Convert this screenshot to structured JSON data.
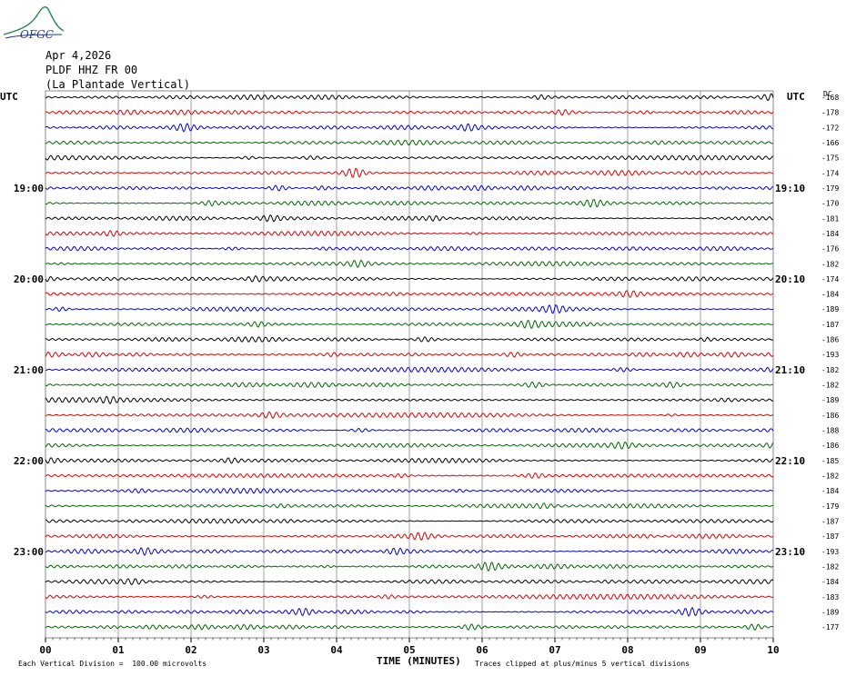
{
  "header": {
    "logo_text": "OFGC",
    "date": "Apr 4,2026",
    "station": "PLDF HHZ FR 00",
    "location": "(La Plantade Vertical)"
  },
  "footer": {
    "scale_note": "Each Vertical Division =  100.00 microvolts",
    "clip_note": "Traces clipped at plus/minus 5 vertical divisions"
  },
  "colors": {
    "black": "#000000",
    "red": "#dd0000",
    "blue": "#0000cc",
    "green": "#006600",
    "grid": "#888888"
  },
  "chart_data": {
    "type": "line",
    "title": "",
    "xlabel": "TIME (MINUTES)",
    "ylabel": "",
    "left_axis_label": "UTC",
    "right_axis_label": "UTC",
    "dc_label": "DC",
    "xlim": [
      0,
      10
    ],
    "x_ticks": [
      "00",
      "01",
      "02",
      "03",
      "04",
      "05",
      "06",
      "07",
      "08",
      "09",
      "10"
    ],
    "trace_colors": [
      "black",
      "red",
      "blue",
      "green"
    ],
    "left_time_labels": [
      {
        "trace": 6,
        "text": "19:00"
      },
      {
        "trace": 12,
        "text": "20:00"
      },
      {
        "trace": 18,
        "text": "21:00"
      },
      {
        "trace": 24,
        "text": "22:00"
      },
      {
        "trace": 30,
        "text": "23:00"
      }
    ],
    "right_time_labels": [
      {
        "trace": 6,
        "text": "19:10"
      },
      {
        "trace": 12,
        "text": "20:10"
      },
      {
        "trace": 18,
        "text": "21:10"
      },
      {
        "trace": 24,
        "text": "22:10"
      },
      {
        "trace": 30,
        "text": "23:10"
      }
    ],
    "dc_offsets": [
      "-168",
      "-178",
      "-172",
      "-166",
      "-175",
      "-174",
      "-179",
      "-170",
      "-181",
      "-184",
      "-176",
      "-182",
      "-174",
      "-184",
      "-189",
      "-187",
      "-186",
      "-193",
      "-182",
      "-182",
      "-189",
      "-186",
      "-188",
      "-186",
      "-185",
      "-182",
      "-184",
      "-179",
      "-187",
      "-187",
      "-193",
      "-182",
      "-184",
      "-183",
      "-189",
      "-177"
    ]
  }
}
